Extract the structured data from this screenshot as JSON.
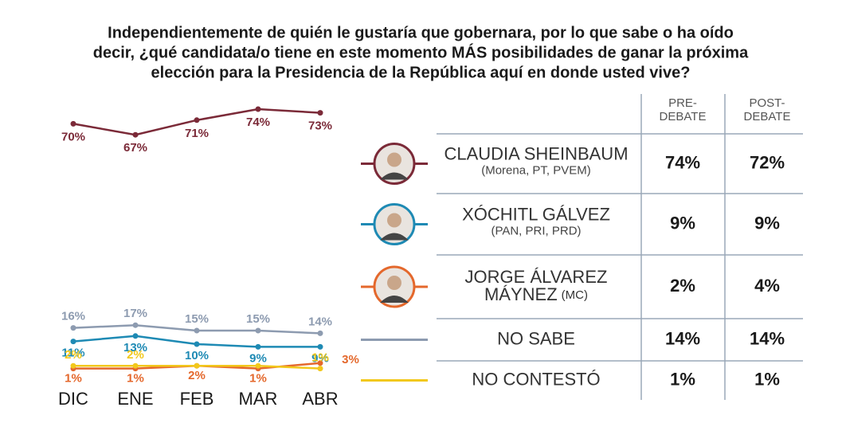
{
  "chart_data": {
    "type": "line",
    "title": [
      "Independientemente de quién le gustaría que gobernara, por lo que sabe o ha oído",
      "decir, ¿qué candidata/o tiene en este momento MÁS posibilidades de ganar la próxima",
      "elección para la Presidencia de la República aquí en donde usted vive?"
    ],
    "categories": [
      "DIC",
      "ENE",
      "FEB",
      "MAR",
      "ABR"
    ],
    "series": [
      {
        "color": "#7b2a38",
        "values": [
          70,
          67,
          71,
          74,
          73
        ],
        "value_labels": [
          "70%",
          "67%",
          "71%",
          "74%",
          "73%"
        ]
      },
      {
        "color": "#1e8ab4",
        "values": [
          11,
          13,
          10,
          9,
          9
        ],
        "value_labels": [
          "11%",
          "13%",
          "10%",
          "9%",
          "9%"
        ]
      },
      {
        "color": "#e4682c",
        "values": [
          1,
          1,
          2,
          1,
          3
        ],
        "value_labels": [
          "1%",
          "1%",
          "2%",
          "1%",
          "3%"
        ]
      },
      {
        "color": "#8d9bb0",
        "values": [
          16,
          17,
          15,
          15,
          14
        ],
        "value_labels": [
          "16%",
          "17%",
          "15%",
          "15%",
          "14%"
        ]
      },
      {
        "color": "#f2c81c",
        "values": [
          2,
          2,
          2,
          2,
          1
        ],
        "value_labels": [
          "2%",
          "2%",
          null,
          null,
          "1%"
        ]
      }
    ]
  },
  "table": {
    "headers": [
      [
        "PRE-",
        "DEBATE"
      ],
      [
        "POST-",
        "DEBATE"
      ]
    ],
    "rows": [
      {
        "name": [
          "CLAUDIA SHEINBAUM"
        ],
        "party": "(Morena, PT, PVEM)",
        "pre": "74%",
        "post": "72%"
      },
      {
        "name": [
          "XÓCHITL GÁLVEZ"
        ],
        "party": "(PAN, PRI, PRD)",
        "pre": "9%",
        "post": "9%"
      },
      {
        "name": [
          "JORGE ÁLVAREZ",
          "MÁYNEZ"
        ],
        "party": "(MC)",
        "pre": "2%",
        "post": "4%"
      },
      {
        "name": [
          "NO SABE"
        ],
        "pre": "14%",
        "post": "14%"
      },
      {
        "name": [
          "NO CONTESTÓ"
        ],
        "pre": "1%",
        "post": "1%"
      }
    ]
  }
}
